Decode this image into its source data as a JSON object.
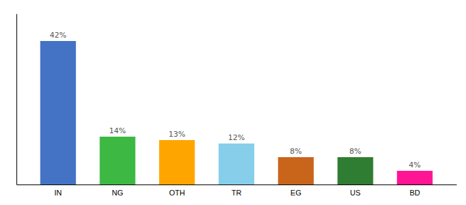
{
  "chart_data": {
    "type": "bar",
    "categories": [
      "IN",
      "NG",
      "OTH",
      "TR",
      "EG",
      "US",
      "BD"
    ],
    "values": [
      42,
      14,
      13,
      12,
      8,
      8,
      4
    ],
    "value_labels": [
      "42%",
      "14%",
      "13%",
      "12%",
      "8%",
      "8%",
      "4%"
    ],
    "colors": [
      "#4472C4",
      "#3CB843",
      "#FFA500",
      "#87CEEB",
      "#C8651B",
      "#2E7D32",
      "#FF1493"
    ],
    "ylim": [
      0,
      50
    ],
    "grid": false,
    "data_labels": true,
    "tick_labels": "x"
  }
}
